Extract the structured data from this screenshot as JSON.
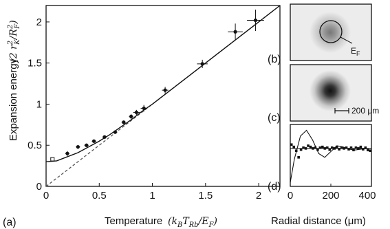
{
  "chart_data": [
    {
      "panel": "(a)",
      "type": "scatter",
      "ylabel": "Expansion energy",
      "ylabel_unit": "(2 r_K^2 / R_F^2)",
      "xlabel": "Temperature",
      "xlabel_unit": "(k_B T_Rb / E_F)",
      "xlim": [
        0,
        2.2
      ],
      "ylim": [
        0,
        2.2
      ],
      "xticks": [
        "0",
        "0.5",
        "1",
        "1.5",
        "2"
      ],
      "yticks": [
        "0",
        "0.5",
        "1",
        "1.5",
        "2"
      ],
      "points": [
        {
          "x": 0.2,
          "y": 0.4,
          "xerr": 0.02,
          "yerr": 0.03
        },
        {
          "x": 0.3,
          "y": 0.48,
          "xerr": 0.02,
          "yerr": 0.02
        },
        {
          "x": 0.38,
          "y": 0.5,
          "xerr": 0.02,
          "yerr": 0.02
        },
        {
          "x": 0.45,
          "y": 0.55,
          "xerr": 0.02,
          "yerr": 0.02
        },
        {
          "x": 0.55,
          "y": 0.6,
          "xerr": 0.02,
          "yerr": 0.02
        },
        {
          "x": 0.65,
          "y": 0.66,
          "xerr": 0.02,
          "yerr": 0.02
        },
        {
          "x": 0.73,
          "y": 0.78,
          "xerr": 0.02,
          "yerr": 0.02
        },
        {
          "x": 0.8,
          "y": 0.85,
          "xerr": 0.02,
          "yerr": 0.03
        },
        {
          "x": 0.85,
          "y": 0.9,
          "xerr": 0.03,
          "yerr": 0.03
        },
        {
          "x": 0.92,
          "y": 0.95,
          "xerr": 0.03,
          "yerr": 0.04
        },
        {
          "x": 1.12,
          "y": 1.17,
          "xerr": 0.03,
          "yerr": 0.04
        },
        {
          "x": 1.47,
          "y": 1.49,
          "xerr": 0.05,
          "yerr": 0.05
        },
        {
          "x": 1.78,
          "y": 1.88,
          "xerr": 0.07,
          "yerr": 0.1
        },
        {
          "x": 1.97,
          "y": 2.02,
          "xerr": 0.08,
          "yerr": 0.13
        }
      ],
      "open_point": {
        "x": 0.06,
        "y": 0.33
      },
      "solid_curve": [
        [
          0,
          0.3
        ],
        [
          0.1,
          0.31
        ],
        [
          0.2,
          0.36
        ],
        [
          0.3,
          0.41
        ],
        [
          0.4,
          0.48
        ],
        [
          0.5,
          0.55
        ],
        [
          0.6,
          0.63
        ],
        [
          0.7,
          0.72
        ],
        [
          0.8,
          0.81
        ],
        [
          0.9,
          0.91
        ],
        [
          1.0,
          1.0
        ],
        [
          1.2,
          1.2
        ],
        [
          1.4,
          1.4
        ],
        [
          1.6,
          1.6
        ],
        [
          1.8,
          1.8
        ],
        [
          2.0,
          2.0
        ],
        [
          2.2,
          2.2
        ]
      ],
      "dashed_line": [
        [
          0,
          0
        ],
        [
          2.2,
          2.2
        ]
      ]
    },
    {
      "panel": "(b)",
      "type": "image",
      "annotation": "E_F"
    },
    {
      "panel": "(c)",
      "type": "image",
      "scalebar_label": "200 μm"
    },
    {
      "panel": "(d)",
      "type": "scatter",
      "xlabel": "Radial distance (μm)",
      "xlim": [
        0,
        400
      ],
      "xticks": [
        "0",
        "200",
        "400"
      ],
      "points_y": [
        0.78,
        0.72,
        0.62,
        0.45,
        0.65,
        0.7,
        0.68,
        0.75,
        0.72,
        0.68,
        0.7,
        0.65,
        0.7,
        0.72,
        0.68,
        0.7,
        0.65,
        0.7,
        0.68,
        0.72,
        0.66,
        0.7,
        0.68,
        0.7,
        0.66,
        0.7,
        0.64,
        0.7,
        0.68,
        0.72,
        0.66,
        0.7,
        0.64,
        0.62
      ],
      "curve_damped": [
        [
          0,
          -0.2
        ],
        [
          20,
          0.4
        ],
        [
          50,
          1.0
        ],
        [
          80,
          1.15
        ],
        [
          110,
          0.9
        ],
        [
          140,
          0.55
        ],
        [
          170,
          0.45
        ],
        [
          200,
          0.6
        ],
        [
          230,
          0.75
        ],
        [
          260,
          0.72
        ],
        [
          290,
          0.66
        ],
        [
          320,
          0.64
        ],
        [
          360,
          0.67
        ],
        [
          400,
          0.68
        ]
      ],
      "curve_flat_y": 0.68
    }
  ],
  "labels": {
    "panel_a": "(a)",
    "panel_b": "(b)",
    "panel_c": "(c)",
    "panel_d": "(d)",
    "ef": "E",
    "ef_sub": "F",
    "scalebar": "200 μm",
    "ylabel": "Expansion energy",
    "xlabel": "Temperature",
    "xlabel_d": "Radial distance (μm)"
  },
  "colors": {
    "ink": "#111111",
    "dashed": "#555555"
  }
}
